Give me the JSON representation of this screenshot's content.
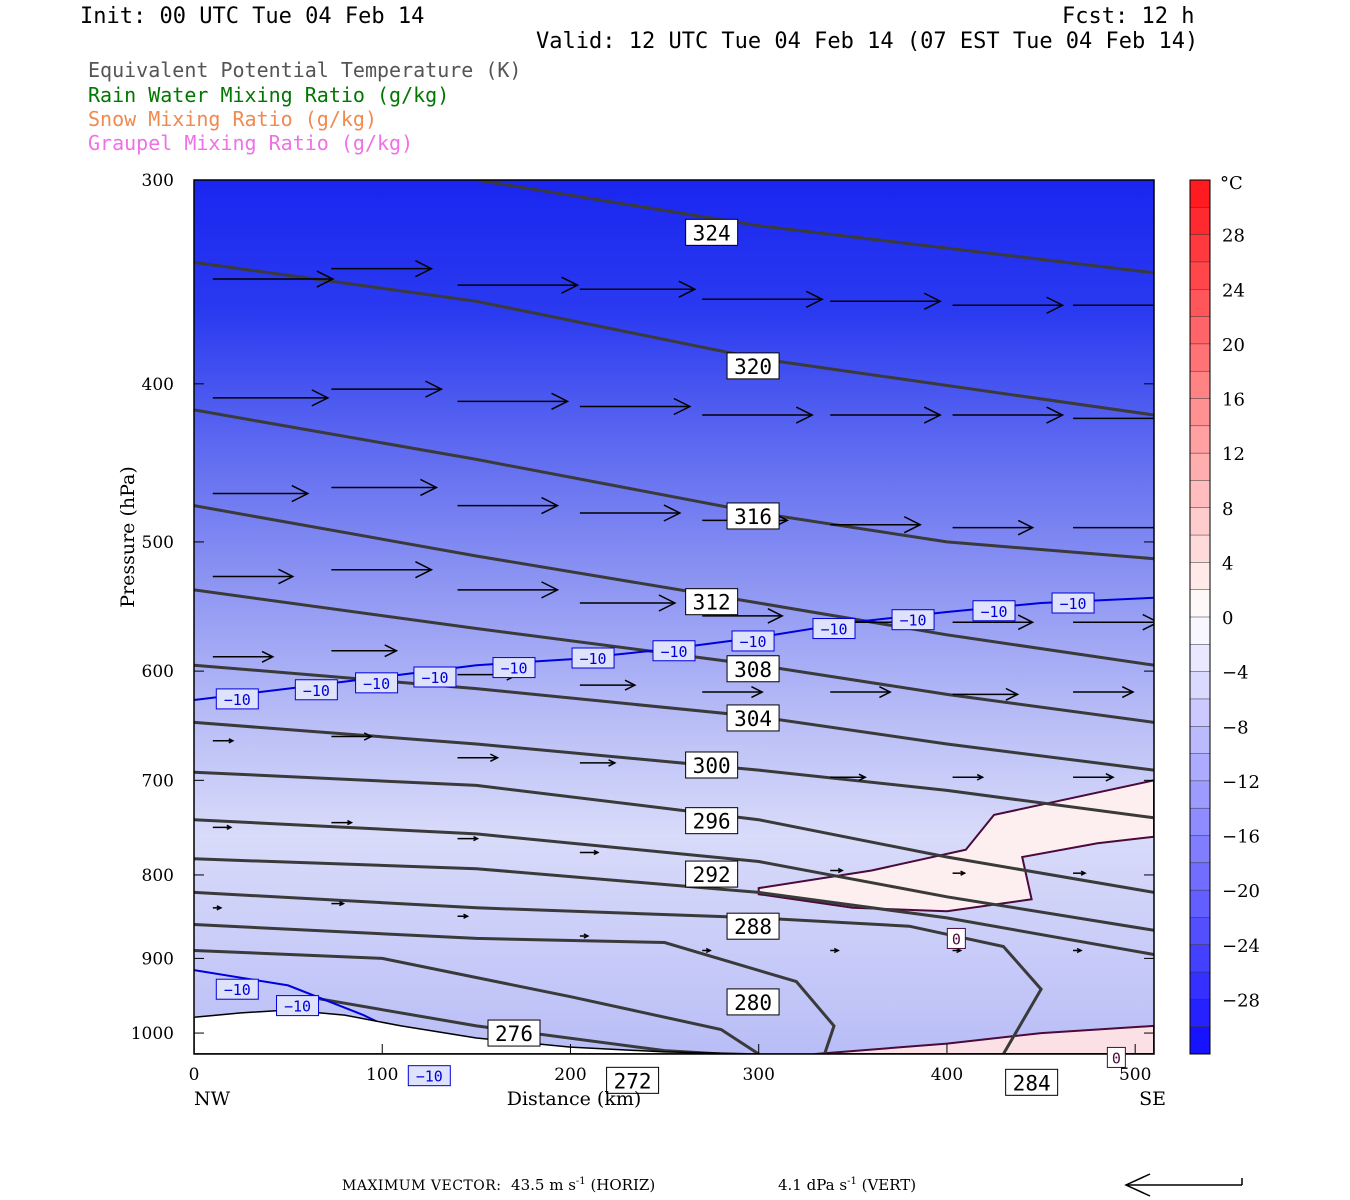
{
  "header": {
    "init": "Init: 00 UTC Tue 04 Feb 14",
    "fcst": "Fcst:   12 h",
    "valid": "Valid: 12 UTC Tue 04 Feb 14 (07 EST Tue 04 Feb 14)"
  },
  "legend": [
    {
      "label": "Equivalent Potential Temperature (K)",
      "color": "#555555"
    },
    {
      "label": "Rain Water Mixing Ratio (g/kg)",
      "color": "#007700"
    },
    {
      "label": "Snow Mixing Ratio (g/kg)",
      "color": "#f08a50"
    },
    {
      "label": "Graupel Mixing Ratio (g/kg)",
      "color": "#f070e8"
    }
  ],
  "footer": {
    "max_label": "MAXIMUM VECTOR:",
    "horiz_value": "43.5",
    "horiz_unit": "m s",
    "horiz_exp": "-1",
    "horiz_tag": "(HORIZ)",
    "vert_value": "4.1",
    "vert_unit": "dPa s",
    "vert_exp": "-1",
    "vert_tag": "(VERT)"
  },
  "chart_data": {
    "type": "cross-section",
    "xlabel": "Distance (km)",
    "ylabel": "Pressure (hPa)",
    "x_ticks": [
      0,
      100,
      200,
      300,
      400,
      500
    ],
    "y_ticks": [
      300,
      400,
      500,
      600,
      700,
      800,
      900,
      1000
    ],
    "xlim": [
      0,
      510
    ],
    "ylim": [
      300,
      1030
    ],
    "y_scale": "log-pressure",
    "endpoint_labels": {
      "left": "NW",
      "right": "SE"
    },
    "colorbar": {
      "unit": "°C",
      "ticks": [
        28,
        24,
        20,
        16,
        12,
        8,
        4,
        0,
        -4,
        -8,
        -12,
        -16,
        -20,
        -24,
        -28
      ],
      "range": [
        -32,
        32
      ]
    },
    "theta_e_contours": [
      {
        "value": 324,
        "points": [
          [
            150,
            300
          ],
          [
            300,
            320
          ],
          [
            510,
            342
          ]
        ]
      },
      {
        "value": 320,
        "points": [
          [
            0,
            337
          ],
          [
            150,
            356
          ],
          [
            300,
            386
          ],
          [
            510,
            418
          ]
        ]
      },
      {
        "value": 316,
        "points": [
          [
            0,
            415
          ],
          [
            150,
            445
          ],
          [
            300,
            480
          ],
          [
            400,
            500
          ],
          [
            510,
            512
          ]
        ]
      },
      {
        "value": 312,
        "points": [
          [
            0,
            475
          ],
          [
            150,
            510
          ],
          [
            300,
            545
          ],
          [
            400,
            570
          ],
          [
            510,
            595
          ]
        ]
      },
      {
        "value": 308,
        "points": [
          [
            0,
            535
          ],
          [
            150,
            565
          ],
          [
            300,
            595
          ],
          [
            400,
            620
          ],
          [
            510,
            645
          ]
        ]
      },
      {
        "value": 304,
        "points": [
          [
            0,
            595
          ],
          [
            150,
            615
          ],
          [
            300,
            640
          ],
          [
            400,
            665
          ],
          [
            510,
            690
          ]
        ]
      },
      {
        "value": 300,
        "points": [
          [
            0,
            645
          ],
          [
            150,
            665
          ],
          [
            300,
            690
          ],
          [
            400,
            710
          ],
          [
            510,
            738
          ]
        ]
      },
      {
        "value": 296,
        "points": [
          [
            0,
            692
          ],
          [
            150,
            705
          ],
          [
            300,
            740
          ],
          [
            400,
            780
          ],
          [
            510,
            820
          ]
        ]
      },
      {
        "value": 292,
        "points": [
          [
            0,
            740
          ],
          [
            150,
            755
          ],
          [
            300,
            785
          ],
          [
            400,
            825
          ],
          [
            510,
            865
          ]
        ]
      },
      {
        "value": 288,
        "points": [
          [
            0,
            782
          ],
          [
            150,
            793
          ],
          [
            300,
            820
          ],
          [
            400,
            850
          ],
          [
            510,
            895
          ]
        ]
      },
      {
        "value": 284,
        "points": [
          [
            0,
            820
          ],
          [
            150,
            838
          ],
          [
            300,
            850
          ],
          [
            380,
            860
          ],
          [
            430,
            885
          ],
          [
            450,
            940
          ],
          [
            430,
            1030
          ]
        ]
      },
      {
        "value": 280,
        "points": [
          [
            0,
            858
          ],
          [
            150,
            875
          ],
          [
            250,
            880
          ],
          [
            320,
            930
          ],
          [
            340,
            990
          ],
          [
            335,
            1030
          ]
        ]
      },
      {
        "value": 276,
        "points": [
          [
            0,
            890
          ],
          [
            100,
            900
          ],
          [
            200,
            950
          ],
          [
            280,
            995
          ],
          [
            300,
            1030
          ]
        ]
      },
      {
        "value": 272,
        "points": [
          [
            60,
            950
          ],
          [
            150,
            990
          ],
          [
            250,
            1025
          ],
          [
            280,
            1030
          ]
        ]
      }
    ],
    "theta_e_labels": [
      {
        "text": "324",
        "x": 275,
        "y": 323
      },
      {
        "text": "320",
        "x": 297,
        "y": 390
      },
      {
        "text": "316",
        "x": 297,
        "y": 482
      },
      {
        "text": "312",
        "x": 275,
        "y": 544
      },
      {
        "text": "308",
        "x": 297,
        "y": 598
      },
      {
        "text": "304",
        "x": 297,
        "y": 641
      },
      {
        "text": "300",
        "x": 275,
        "y": 685
      },
      {
        "text": "296",
        "x": 275,
        "y": 741
      },
      {
        "text": "292",
        "x": 275,
        "y": 799
      },
      {
        "text": "288",
        "x": 297,
        "y": 860
      },
      {
        "text": "280",
        "x": 297,
        "y": 957
      },
      {
        "text": "276",
        "x": 170,
        "y": 1000
      },
      {
        "text": "272",
        "x": 233,
        "y": 1069
      },
      {
        "text": "284",
        "x": 445,
        "y": 1072
      }
    ],
    "isotherm_minus10": {
      "value": -10,
      "upper_points": [
        [
          0,
          625
        ],
        [
          50,
          615
        ],
        [
          100,
          605
        ],
        [
          150,
          595
        ],
        [
          200,
          590
        ],
        [
          250,
          582
        ],
        [
          300,
          572
        ],
        [
          350,
          560
        ],
        [
          400,
          552
        ],
        [
          450,
          545
        ],
        [
          510,
          541
        ]
      ],
      "lower_points": [
        [
          0,
          915
        ],
        [
          50,
          935
        ],
        [
          90,
          975
        ],
        [
          110,
          1000
        ]
      ],
      "labels": [
        {
          "x": 23,
          "y": 624
        },
        {
          "x": 65,
          "y": 616
        },
        {
          "x": 97,
          "y": 610
        },
        {
          "x": 128,
          "y": 605
        },
        {
          "x": 170,
          "y": 597
        },
        {
          "x": 212,
          "y": 589
        },
        {
          "x": 255,
          "y": 583
        },
        {
          "x": 297,
          "y": 575
        },
        {
          "x": 340,
          "y": 565
        },
        {
          "x": 382,
          "y": 558
        },
        {
          "x": 425,
          "y": 551
        },
        {
          "x": 467,
          "y": 545
        },
        {
          "x": 23,
          "y": 940
        },
        {
          "x": 55,
          "y": 962
        },
        {
          "x": 125,
          "y": 1062
        }
      ]
    },
    "isotherm_zero": {
      "value": 0,
      "region1": [
        [
          300,
          815
        ],
        [
          360,
          795
        ],
        [
          410,
          772
        ],
        [
          425,
          735
        ],
        [
          510,
          700
        ],
        [
          510,
          758
        ],
        [
          480,
          765
        ],
        [
          440,
          780
        ],
        [
          445,
          828
        ],
        [
          400,
          842
        ],
        [
          350,
          838
        ],
        [
          300,
          822
        ]
      ],
      "region2": [
        [
          330,
          1030
        ],
        [
          400,
          1015
        ],
        [
          450,
          1000
        ],
        [
          510,
          990
        ],
        [
          510,
          1030
        ]
      ],
      "labels": [
        {
          "x": 405,
          "y": 875
        },
        {
          "x": 490,
          "y": 1035
        }
      ]
    },
    "wind_vectors": [
      {
        "x": 10,
        "p": 345,
        "len": 120
      },
      {
        "x": 73,
        "p": 340,
        "len": 100
      },
      {
        "x": 140,
        "p": 348,
        "len": 120
      },
      {
        "x": 205,
        "p": 350,
        "len": 115
      },
      {
        "x": 270,
        "p": 355,
        "len": 120
      },
      {
        "x": 338,
        "p": 356,
        "len": 110
      },
      {
        "x": 403,
        "p": 358,
        "len": 110
      },
      {
        "x": 467,
        "p": 358,
        "len": 110
      },
      {
        "x": 10,
        "p": 408,
        "len": 115
      },
      {
        "x": 73,
        "p": 403,
        "len": 110
      },
      {
        "x": 140,
        "p": 410,
        "len": 110
      },
      {
        "x": 205,
        "p": 413,
        "len": 110
      },
      {
        "x": 270,
        "p": 418,
        "len": 110
      },
      {
        "x": 338,
        "p": 418,
        "len": 110
      },
      {
        "x": 403,
        "p": 418,
        "len": 110
      },
      {
        "x": 467,
        "p": 420,
        "len": 110
      },
      {
        "x": 10,
        "p": 467,
        "len": 95
      },
      {
        "x": 73,
        "p": 463,
        "len": 105
      },
      {
        "x": 140,
        "p": 475,
        "len": 100
      },
      {
        "x": 205,
        "p": 480,
        "len": 100
      },
      {
        "x": 270,
        "p": 485,
        "len": 85
      },
      {
        "x": 338,
        "p": 488,
        "len": 90
      },
      {
        "x": 403,
        "p": 490,
        "len": 80
      },
      {
        "x": 467,
        "p": 490,
        "len": 100
      },
      {
        "x": 10,
        "p": 525,
        "len": 80
      },
      {
        "x": 73,
        "p": 520,
        "len": 100
      },
      {
        "x": 140,
        "p": 535,
        "len": 100
      },
      {
        "x": 205,
        "p": 545,
        "len": 95
      },
      {
        "x": 270,
        "p": 555,
        "len": 80
      },
      {
        "x": 338,
        "p": 560,
        "len": 80
      },
      {
        "x": 403,
        "p": 560,
        "len": 80
      },
      {
        "x": 467,
        "p": 560,
        "len": 85
      },
      {
        "x": 10,
        "p": 588,
        "len": 60
      },
      {
        "x": 73,
        "p": 583,
        "len": 65
      },
      {
        "x": 140,
        "p": 603,
        "len": 60
      },
      {
        "x": 205,
        "p": 612,
        "len": 55
      },
      {
        "x": 270,
        "p": 618,
        "len": 60
      },
      {
        "x": 338,
        "p": 618,
        "len": 60
      },
      {
        "x": 403,
        "p": 620,
        "len": 65
      },
      {
        "x": 467,
        "p": 618,
        "len": 60
      },
      {
        "x": 10,
        "p": 662,
        "len": 20
      },
      {
        "x": 73,
        "p": 658,
        "len": 40
      },
      {
        "x": 140,
        "p": 678,
        "len": 40
      },
      {
        "x": 205,
        "p": 683,
        "len": 35
      },
      {
        "x": 270,
        "p": 690,
        "len": 30
      },
      {
        "x": 338,
        "p": 697,
        "len": 35
      },
      {
        "x": 403,
        "p": 697,
        "len": 30
      },
      {
        "x": 467,
        "p": 697,
        "len": 40
      },
      {
        "x": 10,
        "p": 748,
        "len": 18
      },
      {
        "x": 73,
        "p": 743,
        "len": 20
      },
      {
        "x": 140,
        "p": 760,
        "len": 20
      },
      {
        "x": 205,
        "p": 775,
        "len": 18
      },
      {
        "x": 270,
        "p": 792,
        "len": 15
      },
      {
        "x": 338,
        "p": 795,
        "len": 12
      },
      {
        "x": 403,
        "p": 798,
        "len": 12
      },
      {
        "x": 467,
        "p": 798,
        "len": 12
      },
      {
        "x": 10,
        "p": 838,
        "len": 8
      },
      {
        "x": 73,
        "p": 833,
        "len": 12
      },
      {
        "x": 140,
        "p": 848,
        "len": 10
      },
      {
        "x": 205,
        "p": 872,
        "len": 8
      },
      {
        "x": 270,
        "p": 890,
        "len": 8
      },
      {
        "x": 338,
        "p": 890,
        "len": 8
      },
      {
        "x": 403,
        "p": 890,
        "len": 8
      },
      {
        "x": 467,
        "p": 890,
        "len": 8
      }
    ]
  }
}
